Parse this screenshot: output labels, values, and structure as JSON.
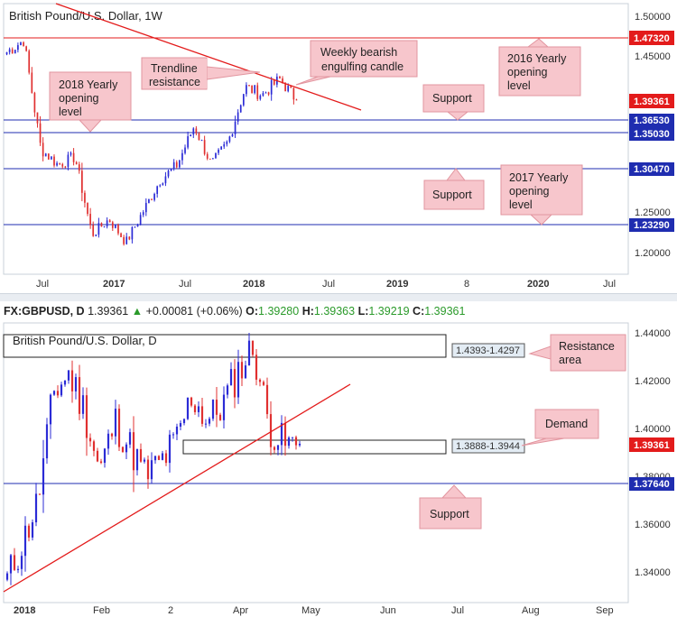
{
  "colors": {
    "up": "#2b2bd6",
    "down": "#e03030",
    "resistance_line": "#e31b1b",
    "support_line": "#1f2db0",
    "callout_fill": "#f7c6cc",
    "callout_stroke": "#e2959f",
    "tag_red": "#e31b1b",
    "tag_blue": "#1f2db0",
    "price_tag": "#e31b1b",
    "zone_tag_fill": "#e3ecf4"
  },
  "weekly": {
    "title": "British Pound/U.S. Dollar, 1W",
    "x_ticks": [
      "Jul",
      "2017",
      "Jul",
      "2018",
      "Jul",
      "2019",
      "8",
      "2020",
      "Jul"
    ],
    "y_ticks": [
      "1.50000",
      "1.45000",
      "1.25000",
      "1.20000"
    ],
    "levels": [
      {
        "label": "1.47320",
        "kind": "red"
      },
      {
        "label": "1.39361",
        "kind": "price"
      },
      {
        "label": "1.36530",
        "kind": "blue"
      },
      {
        "label": "1.35030",
        "kind": "blue"
      },
      {
        "label": "1.30470",
        "kind": "blue"
      },
      {
        "label": "1.23290",
        "kind": "blue"
      }
    ],
    "callouts": {
      "trendline": [
        "Trendline",
        "resistance"
      ],
      "bearish": [
        "Weekly bearish",
        "engulfing candle"
      ],
      "y2016": [
        "2016 Yearly",
        "opening",
        "level"
      ],
      "y2018": [
        "2018 Yearly",
        "opening",
        "level"
      ],
      "support1": [
        "Support"
      ],
      "support2": [
        "Support"
      ],
      "y2017": [
        "2017 Yearly",
        "opening",
        "level"
      ]
    }
  },
  "daily": {
    "bar_info": {
      "symbol": "FX:GBPUSD, D",
      "last": "1.39361",
      "change": "+0.00081 (+0.06%)",
      "o_label": "O:",
      "o": "1.39280",
      "h_label": "H:",
      "h": "1.39363",
      "l_label": "L:",
      "l": "1.39219",
      "c_label": "C:",
      "c": "1.39361"
    },
    "title": "British Pound/U.S. Dollar, D",
    "x_ticks": [
      "2018",
      "Feb",
      "2",
      "Apr",
      "May",
      "Jun",
      "Jul",
      "Aug",
      "Sep"
    ],
    "y_ticks": [
      "1.44000",
      "1.42000",
      "1.40000",
      "1.38000",
      "1.36000",
      "1.34000"
    ],
    "levels": [
      {
        "label": "1.39361",
        "kind": "price"
      },
      {
        "label": "1.37640",
        "kind": "blue"
      }
    ],
    "zones": [
      {
        "label": "1.4393-1.4297"
      },
      {
        "label": "1.3888-1.3944"
      }
    ],
    "callouts": {
      "resistance": [
        "Resistance",
        "area"
      ],
      "demand": [
        "Demand"
      ],
      "support": [
        "Support"
      ]
    }
  },
  "chart_data": [
    {
      "type": "candlestick",
      "title": "British Pound/U.S. Dollar, 1W",
      "xlabel": "",
      "ylabel": "",
      "ylim": [
        1.17,
        1.51
      ],
      "y_scale": "log",
      "horizontal_levels": [
        1.4732,
        1.3653,
        1.3503,
        1.3047,
        1.2329
      ],
      "last_price": 1.39361,
      "trendline": "descending resistance from 2016 highs through 2018 highs",
      "annotations": [
        "Trendline resistance",
        "Weekly bearish engulfing candle",
        "2016 Yearly opening level",
        "2018 Yearly opening level",
        "Support",
        "Support",
        "2017 Yearly opening level"
      ],
      "close_path": [
        {
          "x": "2016-05",
          "close": 1.455
        },
        {
          "x": "2016-06",
          "close": 1.47
        },
        {
          "x": "2016-06 (wk)",
          "close": 1.33
        },
        {
          "x": "2016-07",
          "close": 1.31
        },
        {
          "x": "2016-09",
          "close": 1.32
        },
        {
          "x": "2016-10",
          "close": 1.22
        },
        {
          "x": "2016-12",
          "close": 1.24
        },
        {
          "x": "2017-01",
          "close": 1.21
        },
        {
          "x": "2017-03",
          "close": 1.25
        },
        {
          "x": "2017-05",
          "close": 1.29
        },
        {
          "x": "2017-07",
          "close": 1.31
        },
        {
          "x": "2017-09",
          "close": 1.36
        },
        {
          "x": "2017-10",
          "close": 1.31
        },
        {
          "x": "2017-12",
          "close": 1.34
        },
        {
          "x": "2018-01",
          "close": 1.41
        },
        {
          "x": "2018-03",
          "close": 1.4
        },
        {
          "x": "2018-04",
          "close": 1.42
        },
        {
          "x": "2018-04 (last)",
          "close": 1.39361
        }
      ]
    },
    {
      "type": "candlestick",
      "title": "British Pound/U.S. Dollar, D",
      "xlabel": "",
      "ylabel": "",
      "ylim": [
        1.332,
        1.442
      ],
      "horizontal_levels": [
        1.3764
      ],
      "zones": [
        {
          "from": 1.4297,
          "to": 1.4393
        },
        {
          "from": 1.3888,
          "to": 1.3944
        }
      ],
      "last_price": 1.39361,
      "trendline": "ascending support from early-January 2018 lows",
      "annotations": [
        "Resistance area",
        "Demand",
        "Support"
      ],
      "close_path": [
        {
          "x": "2018-01-01",
          "close": 1.337
        },
        {
          "x": "2018-01-08",
          "close": 1.352
        },
        {
          "x": "2018-01-15",
          "close": 1.37
        },
        {
          "x": "2018-01-22",
          "close": 1.415
        },
        {
          "x": "2018-01-26",
          "close": 1.423
        },
        {
          "x": "2018-02-02",
          "close": 1.408
        },
        {
          "x": "2018-02-09",
          "close": 1.382
        },
        {
          "x": "2018-02-16",
          "close": 1.403
        },
        {
          "x": "2018-02-23",
          "close": 1.392
        },
        {
          "x": "2018-03-02",
          "close": 1.38
        },
        {
          "x": "2018-03-09",
          "close": 1.386
        },
        {
          "x": "2018-03-16",
          "close": 1.395
        },
        {
          "x": "2018-03-23",
          "close": 1.414
        },
        {
          "x": "2018-03-30",
          "close": 1.403
        },
        {
          "x": "2018-04-06",
          "close": 1.41
        },
        {
          "x": "2018-04-13",
          "close": 1.424
        },
        {
          "x": "2018-04-17",
          "close": 1.434
        },
        {
          "x": "2018-04-20",
          "close": 1.401
        },
        {
          "x": "2018-04-24",
          "close": 1.393
        },
        {
          "x": "2018-04-25",
          "close": 1.39361
        }
      ]
    }
  ]
}
